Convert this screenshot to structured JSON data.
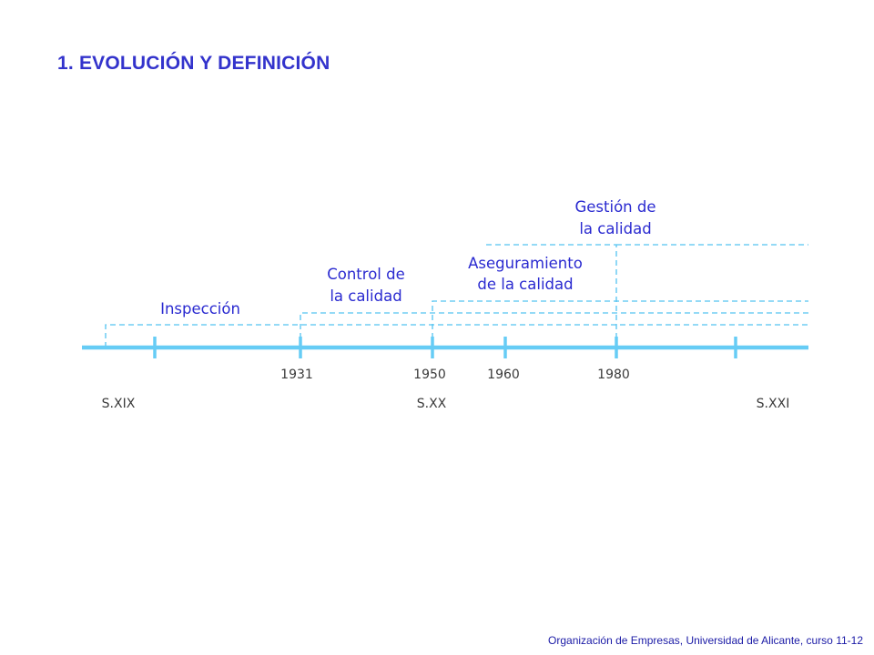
{
  "slide": {
    "title": "1. EVOLUCIÓN Y DEFINICIÓN",
    "footer": "Organización de Empresas, Universidad de Alicante, curso 11-12"
  },
  "colors": {
    "title": "#3333cc",
    "timeline": "#66ccf5",
    "dashed": "#55c4f0",
    "phase_text": "#2a2ad0",
    "axis_text": "#3a3a3a"
  },
  "timeline": {
    "years": [
      "1931",
      "1950",
      "1960",
      "1980"
    ],
    "centuries": [
      "S.XIX",
      "S.XX",
      "S.XXI"
    ],
    "phases": [
      {
        "id": "inspeccion",
        "lines": [
          "Inspección"
        ]
      },
      {
        "id": "control",
        "lines": [
          "Control de",
          "la calidad"
        ]
      },
      {
        "id": "aseguramiento",
        "lines": [
          "Aseguramiento",
          "de la calidad"
        ]
      },
      {
        "id": "gestion",
        "lines": [
          "Gestión de",
          "la calidad"
        ]
      }
    ]
  }
}
